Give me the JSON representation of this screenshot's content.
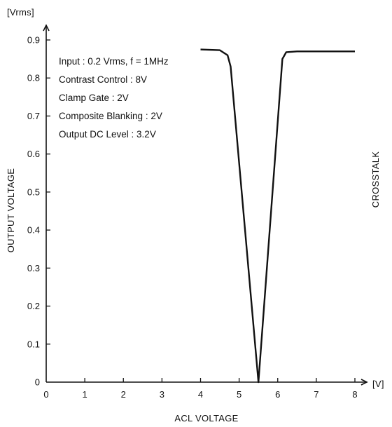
{
  "chart_data": {
    "type": "line",
    "title": "",
    "xlabel": "ACL VOLTAGE",
    "ylabel": "OUTPUT VOLTAGE",
    "right_label": "CROSSTALK",
    "x_unit": "[V]",
    "y_unit": "[Vrms]",
    "xlim": [
      0,
      8
    ],
    "ylim": [
      0,
      0.9
    ],
    "x_ticks": [
      0,
      1,
      2,
      3,
      4,
      5,
      6,
      7,
      8
    ],
    "y_ticks": [
      0,
      0.1,
      0.2,
      0.3,
      0.4,
      0.5,
      0.6,
      0.7,
      0.8,
      0.9
    ],
    "x_tick_labels": [
      "0",
      "1",
      "2",
      "3",
      "4",
      "5",
      "6",
      "7",
      "8"
    ],
    "y_tick_labels": [
      "0",
      "0.1",
      "0.2",
      "0.3",
      "0.4",
      "0.5",
      "0.6",
      "0.7",
      "0.8",
      "0.9"
    ],
    "grid": false,
    "annotations": [
      "Input : 0.2 Vrms, f = 1MHz",
      "Contrast Control : 8V",
      "Clamp Gate : 2V",
      "Composite Blanking : 2V",
      "Output DC Level : 3.2V"
    ],
    "series": [
      {
        "x": [
          4.0,
          4.5,
          4.7,
          4.78,
          5.5,
          6.12,
          6.22,
          6.5,
          8.0
        ],
        "y": [
          0.875,
          0.873,
          0.86,
          0.83,
          0.0,
          0.85,
          0.868,
          0.87,
          0.87
        ]
      }
    ]
  }
}
